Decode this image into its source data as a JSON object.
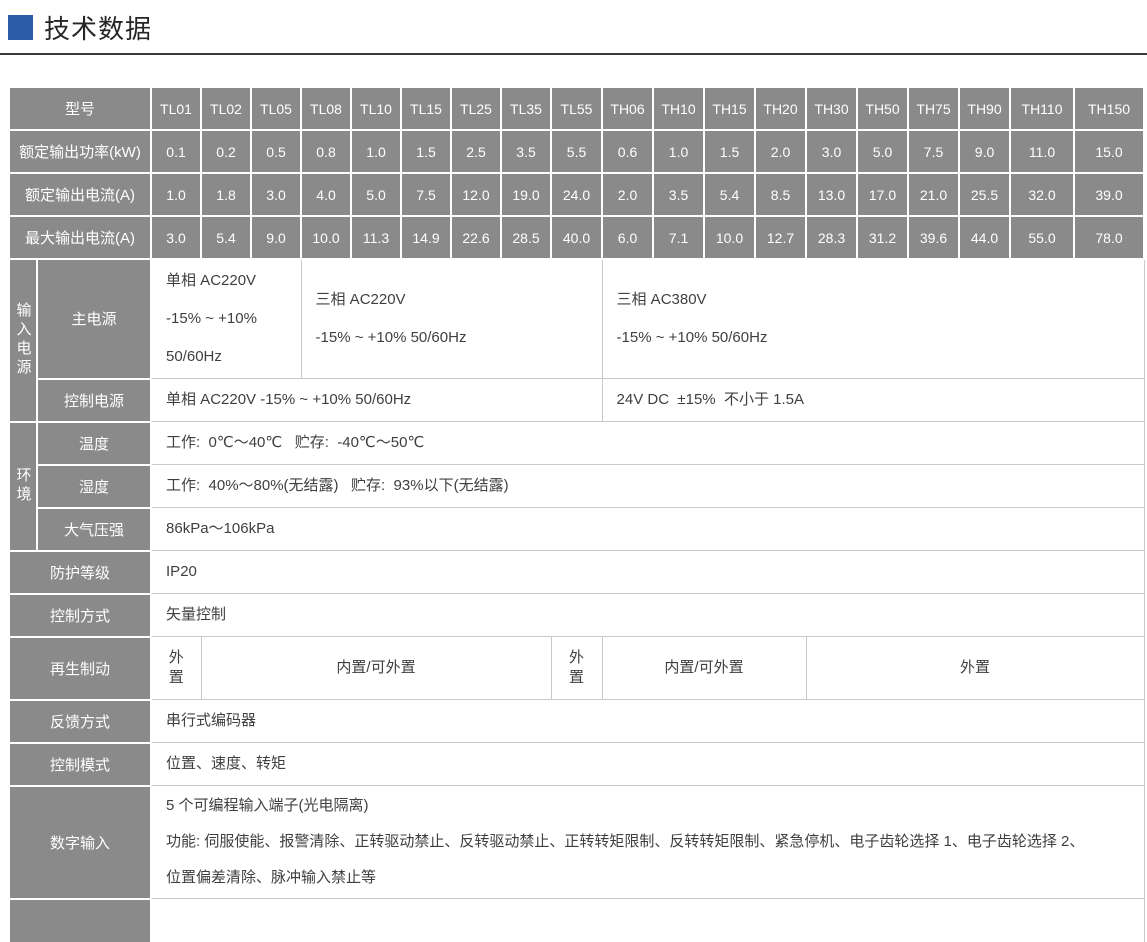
{
  "title": {
    "text": "技术数据"
  },
  "colors": {
    "accent_blue": "#2b5aa7",
    "header_gray": "#8a8a8a",
    "cell_border": "#c9c9c9",
    "body_text": "#3f3f3f"
  },
  "table": {
    "header_rows": [
      {
        "name": "model-row",
        "label": "型号",
        "values": [
          "TL01",
          "TL02",
          "TL05",
          "TL08",
          "TL10",
          "TL15",
          "TL25",
          "TL35",
          "TL55",
          "TH06",
          "TH10",
          "TH15",
          "TH20",
          "TH30",
          "TH50",
          "TH75",
          "TH90",
          "TH110",
          "TH150"
        ]
      },
      {
        "name": "rated-power-row",
        "label": "额定输出功率(kW)",
        "values": [
          "0.1",
          "0.2",
          "0.5",
          "0.8",
          "1.0",
          "1.5",
          "2.5",
          "3.5",
          "5.5",
          "0.6",
          "1.0",
          "1.5",
          "2.0",
          "3.0",
          "5.0",
          "7.5",
          "9.0",
          "11.0",
          "15.0"
        ]
      },
      {
        "name": "rated-current-row",
        "label": "额定输出电流(A)",
        "values": [
          "1.0",
          "1.8",
          "3.0",
          "4.0",
          "5.0",
          "7.5",
          "12.0",
          "19.0",
          "24.0",
          "2.0",
          "3.5",
          "5.4",
          "8.5",
          "13.0",
          "17.0",
          "21.0",
          "25.5",
          "32.0",
          "39.0"
        ]
      },
      {
        "name": "max-current-row",
        "label": "最大输出电流(A)",
        "values": [
          "3.0",
          "5.4",
          "9.0",
          "10.0",
          "11.3",
          "14.9",
          "22.6",
          "28.5",
          "40.0",
          "6.0",
          "7.1",
          "10.0",
          "12.7",
          "28.3",
          "31.2",
          "39.6",
          "44.0",
          "55.0",
          "78.0"
        ]
      }
    ],
    "body_rows": [
      {
        "name": "main-power-row",
        "group": {
          "name": "input-power-group",
          "label": "输入电源",
          "rowspan": 2
        },
        "label": "主电源",
        "cells": [
          {
            "span": 3,
            "lines": [
              "单相 AC220V",
              "-15% ~ +10%",
              "50/60Hz"
            ]
          },
          {
            "span": 6,
            "lines": [
              "三相 AC220V",
              "-15% ~ +10% 50/60Hz"
            ]
          },
          {
            "span": 10,
            "lines": [
              "三相 AC380V",
              "-15% ~ +10% 50/60Hz"
            ]
          }
        ]
      },
      {
        "name": "control-power-row",
        "in_group": true,
        "label": "控制电源",
        "cells": [
          {
            "span": 9,
            "lines": [
              "单相 AC220V -15% ~ +10% 50/60Hz"
            ]
          },
          {
            "span": 10,
            "lines": [
              "24V DC  ±15%  不小于 1.5A"
            ]
          }
        ]
      },
      {
        "name": "temperature-row",
        "group": {
          "name": "environment-group",
          "label": "环境",
          "rowspan": 3
        },
        "label": "温度",
        "cells": [
          {
            "span": 19,
            "lines": [
              "工作:  0℃～40℃   贮存:  -40℃～50℃"
            ]
          }
        ]
      },
      {
        "name": "humidity-row",
        "in_group": true,
        "label": "湿度",
        "cells": [
          {
            "span": 19,
            "lines": [
              "工作:  40%～80%(无结露)   贮存:  93%以下(无结露)"
            ]
          }
        ]
      },
      {
        "name": "air-pressure-row",
        "in_group": true,
        "label": "大气压强",
        "cells": [
          {
            "span": 19,
            "lines": [
              "86kPa～106kPa"
            ]
          }
        ]
      },
      {
        "name": "protection-class-row",
        "label": "防护等级",
        "cells": [
          {
            "span": 19,
            "lines": [
              "IP20"
            ]
          }
        ]
      },
      {
        "name": "control-method-row",
        "label": "控制方式",
        "cells": [
          {
            "span": 19,
            "lines": [
              "矢量控制"
            ]
          }
        ]
      },
      {
        "name": "regen-braking-row",
        "label": "再生制动",
        "cells": [
          {
            "span": 1,
            "lines": [
              "外置"
            ]
          },
          {
            "span": 7,
            "lines": [
              "内置/可外置"
            ]
          },
          {
            "span": 1,
            "lines": [
              "外置"
            ]
          },
          {
            "span": 4,
            "lines": [
              "内置/可外置"
            ]
          },
          {
            "span": 6,
            "lines": [
              "外置"
            ]
          }
        ]
      },
      {
        "name": "feedback-row",
        "label": "反馈方式",
        "cells": [
          {
            "span": 19,
            "lines": [
              "串行式编码器"
            ]
          }
        ]
      },
      {
        "name": "control-mode-row",
        "label": "控制模式",
        "cells": [
          {
            "span": 19,
            "lines": [
              "位置、速度、转矩"
            ]
          }
        ]
      },
      {
        "name": "digital-input-row",
        "label": "数字输入",
        "cells": [
          {
            "span": 19,
            "lines": [
              "5 个可编程输入端子(光电隔离)",
              "功能: 伺服使能、报警清除、正转驱动禁止、反转驱动禁止、正转转矩限制、反转转矩限制、紧急停机、电子齿轮选择 1、电子齿轮选择 2、",
              "位置偏差清除、脉冲输入禁止等"
            ]
          }
        ]
      },
      {
        "name": "cutoff-row",
        "partial": true,
        "label": "",
        "cells": [
          {
            "span": 19,
            "lines": [
              ""
            ]
          }
        ]
      }
    ]
  }
}
